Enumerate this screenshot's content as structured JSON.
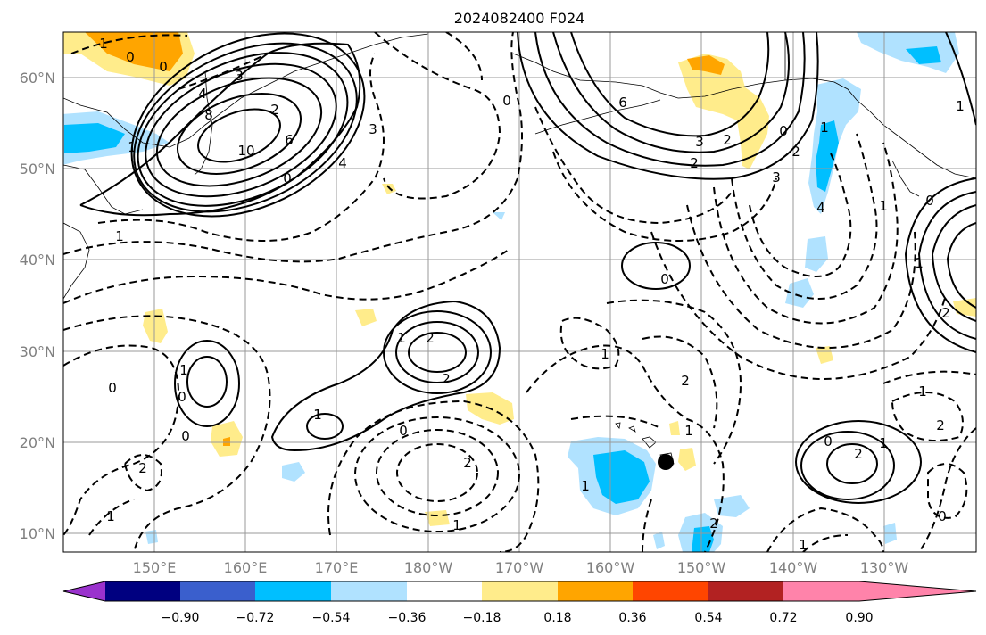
{
  "title": "2024082400 F024",
  "lat_labels": [
    "60°N",
    "50°N",
    "40°N",
    "30°N",
    "20°N",
    "10°N"
  ],
  "lon_labels": [
    "150°E",
    "160°E",
    "170°E",
    "180°W",
    "170°W",
    "160°W",
    "150°W",
    "140°W",
    "130°W"
  ],
  "colorbar": {
    "ticks": [
      "−0.90",
      "−0.72",
      "−0.54",
      "−0.36",
      "−0.18",
      "0.18",
      "0.36",
      "0.54",
      "0.72",
      "0.90"
    ],
    "colors": [
      "#9a32cd",
      "#000080",
      "#3a5fcd",
      "#00bfff",
      "#b0e2ff",
      "#ffffff",
      "#ffec8b",
      "#ffa500",
      "#ff4500",
      "#b22222",
      "#ff83aa"
    ]
  },
  "contour_labels": {
    "l_1": "1",
    "l_0a": "0",
    "l_0b": "0",
    "l_3a": "3",
    "l_4": "4",
    "l_8": "8",
    "l_10": "10",
    "l_6": "6",
    "l_2a": "2",
    "l_1b": "1",
    "l_3b": "3",
    "l_4b": "4",
    "l_0c": "0",
    "l_6b": "6",
    "l_3c": "3",
    "l_2b": "2",
    "l_2c": "2",
    "l_0d": "0",
    "l_1c": "1",
    "l_2d": "2",
    "l_3d": "3",
    "l_4c": "4",
    "l_1d": "1",
    "l_0e": "0",
    "l_1e": "1",
    "l_1f": "1",
    "l_2e": "2",
    "l_0f": "0",
    "l_1g": "1",
    "l_0g": "0",
    "l_1h": "1",
    "l_0h": "0",
    "l_0i": "0",
    "l_2f": "2",
    "l_1i": "1",
    "l_1j": "1",
    "l_2g": "2",
    "l_1k": "1",
    "l_2h": "2",
    "l_1l": "1",
    "l_0j": "0",
    "l_2i": "2",
    "l_1m": "1",
    "l_2j": "2",
    "l_0k": "0",
    "l_1n": "1",
    "l_2k": "2",
    "l_0l": "0",
    "l_1o": "1",
    "l_0m": "0",
    "l_1p": "1",
    "l_2l": "2",
    "l_1q": "1",
    "l_2m": "2",
    "l_1r": "1"
  }
}
